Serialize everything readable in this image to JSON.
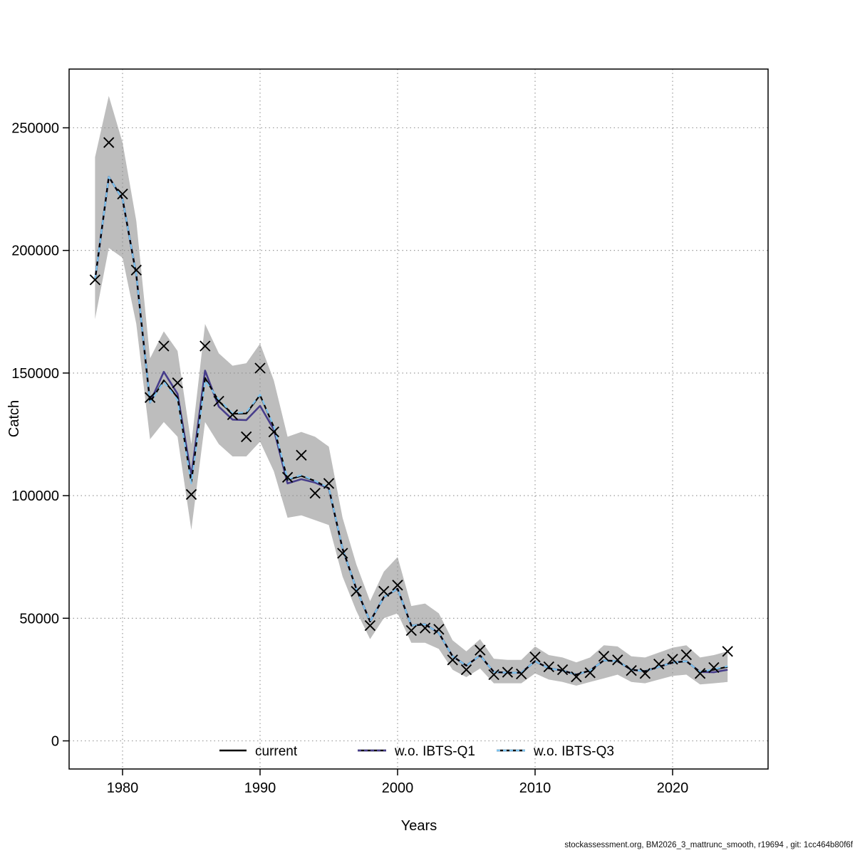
{
  "page": {
    "background": "#ffffff"
  },
  "footer": {
    "text": "stockassessment.org, BM2026_3_mattrunc_smooth, r19694 , git: 1cc464b80f6f"
  },
  "chart_data": {
    "type": "line",
    "title": "",
    "xlabel": "Years",
    "ylabel": "Catch",
    "xlim": [
      1976,
      2027
    ],
    "ylim": [
      0,
      273000
    ],
    "x_ticks": [
      1980,
      1990,
      2000,
      2010,
      2020
    ],
    "y_ticks": [
      0,
      50000,
      100000,
      150000,
      200000,
      250000
    ],
    "grid": true,
    "legend_position": "bottom-inside",
    "marker": {
      "shape": "x",
      "color": "#000000",
      "meaning": "observed catch"
    },
    "colors": {
      "band": "#bdbdbd",
      "grid": "#8f8f8f",
      "current": "#000000",
      "ibts_q1": "#473d8b",
      "ibts_q3": "#7ec3ef"
    },
    "years": [
      1978,
      1979,
      1980,
      1981,
      1982,
      1983,
      1984,
      1985,
      1986,
      1987,
      1988,
      1989,
      1990,
      1991,
      1992,
      1993,
      1994,
      1995,
      1996,
      1997,
      1998,
      1999,
      2000,
      2001,
      2002,
      2003,
      2004,
      2005,
      2006,
      2007,
      2008,
      2009,
      2010,
      2011,
      2012,
      2013,
      2014,
      2015,
      2016,
      2017,
      2018,
      2019,
      2020,
      2021,
      2022,
      2023,
      2024
    ],
    "observed_catch": [
      188000,
      244000,
      223000,
      192000,
      140000,
      161000,
      146000,
      100500,
      161000,
      138500,
      133000,
      124000,
      152000,
      126000,
      107500,
      116500,
      101000,
      105000,
      76500,
      61000,
      47000,
      61000,
      63500,
      45000,
      46000,
      45500,
      33000,
      29000,
      37000,
      27000,
      28000,
      27300,
      34200,
      30200,
      29000,
      26100,
      27800,
      34500,
      33000,
      28700,
      27500,
      31300,
      33300,
      35100,
      27500,
      29900,
      36500
    ],
    "series": [
      {
        "name": "current",
        "style": "solid",
        "values": [
          188000,
          230000,
          221000,
          190000,
          138000,
          147000,
          140000,
          105500,
          148000,
          138500,
          133400,
          133500,
          141000,
          128000,
          106500,
          108000,
          106000,
          103000,
          78300,
          62000,
          48700,
          58600,
          62000,
          47000,
          47500,
          44000,
          34500,
          30700,
          34800,
          28100,
          27800,
          27800,
          32500,
          29600,
          28700,
          27000,
          28700,
          32800,
          32500,
          29000,
          28400,
          30200,
          31900,
          32500,
          28100,
          29000,
          30200
        ]
      },
      {
        "name": "w.o. IBTS-Q1",
        "style": "dashed",
        "values": [
          188000,
          230000,
          221000,
          190000,
          138000,
          150500,
          141500,
          108000,
          151000,
          136300,
          131000,
          130800,
          136600,
          127000,
          105000,
          106700,
          105300,
          103000,
          78300,
          62000,
          48700,
          58600,
          62000,
          47000,
          47500,
          44000,
          34500,
          30700,
          34800,
          28100,
          27800,
          27800,
          32500,
          29600,
          28700,
          27000,
          28700,
          32800,
          32500,
          29000,
          28400,
          30200,
          31900,
          32500,
          28100,
          28000,
          29000
        ]
      },
      {
        "name": "w.o. IBTS-Q3",
        "style": "dashed",
        "values": [
          188000,
          230000,
          221000,
          190000,
          138000,
          146500,
          139000,
          105000,
          147000,
          139200,
          133500,
          134000,
          141200,
          128200,
          106700,
          108400,
          106000,
          103200,
          78300,
          62000,
          48700,
          58600,
          62000,
          47000,
          47500,
          44000,
          34500,
          30700,
          34800,
          28100,
          27800,
          27800,
          32500,
          29600,
          28700,
          27000,
          28700,
          32800,
          32500,
          29000,
          28400,
          30200,
          31900,
          32500,
          28100,
          29200,
          30500
        ]
      }
    ],
    "confidence_band": {
      "lower": [
        172000,
        201000,
        197000,
        170000,
        123000,
        130000,
        124000,
        86000,
        130000,
        121000,
        116000,
        116000,
        122000,
        110000,
        91000,
        92000,
        90000,
        88000,
        67000,
        53000,
        41500,
        50000,
        52000,
        40000,
        40000,
        37500,
        29000,
        26000,
        29500,
        23500,
        23500,
        23500,
        27500,
        25000,
        24000,
        22500,
        24000,
        25500,
        27000,
        24000,
        23500,
        25000,
        26500,
        27000,
        23000,
        23500,
        24000
      ],
      "upper": [
        238000,
        263000,
        244000,
        212000,
        156000,
        167000,
        159000,
        121000,
        170000,
        158000,
        153000,
        154000,
        162000,
        147000,
        124000,
        126000,
        124000,
        120000,
        91000,
        72000,
        57000,
        69000,
        75000,
        55000,
        56000,
        52000,
        41000,
        36500,
        41500,
        33500,
        33000,
        33000,
        38500,
        35000,
        34000,
        32000,
        34000,
        39000,
        38500,
        34500,
        34000,
        36000,
        38000,
        39000,
        34000,
        35000,
        36500
      ]
    }
  }
}
